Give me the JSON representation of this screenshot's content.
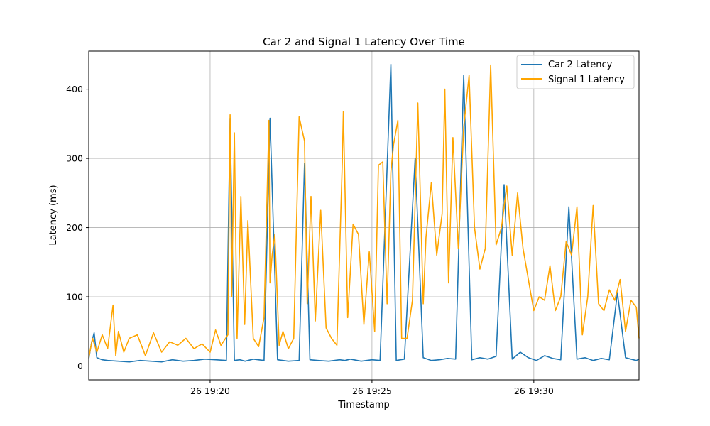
{
  "chart_data": {
    "type": "line",
    "title": "Car 2 and Signal 1 Latency Over Time",
    "xlabel": "Timestamp",
    "ylabel": "Latency (ms)",
    "x_range": [
      "26 19:16:15",
      "26 19:33:15"
    ],
    "ylim": [
      -20,
      455
    ],
    "x_ticks": [
      {
        "time": "26 19:20:00",
        "label": "26 19:20"
      },
      {
        "time": "26 19:25:00",
        "label": "26 19:25"
      },
      {
        "time": "26 19:30:00",
        "label": "26 19:30"
      }
    ],
    "y_ticks": [
      0,
      100,
      200,
      300,
      400
    ],
    "grid": true,
    "legend_position": "top-right",
    "series": [
      {
        "name": "Car 2 Latency",
        "color": "#1f77b4",
        "times": [
          "19:16:15",
          "19:16:20",
          "19:16:25",
          "19:16:30",
          "19:16:40",
          "19:16:50",
          "19:17:10",
          "19:17:30",
          "19:17:50",
          "19:18:10",
          "19:18:30",
          "19:18:50",
          "19:19:10",
          "19:19:30",
          "19:19:50",
          "19:20:10",
          "19:20:30",
          "19:20:37",
          "19:20:45",
          "19:20:55",
          "19:21:05",
          "19:21:20",
          "19:21:40",
          "19:21:51",
          "19:22:05",
          "19:22:25",
          "19:22:45",
          "19:22:55",
          "19:23:05",
          "19:23:20",
          "19:23:40",
          "19:24:00",
          "19:24:10",
          "19:24:20",
          "19:24:40",
          "19:25:00",
          "19:25:15",
          "19:25:35",
          "19:25:45",
          "19:26:00",
          "19:26:20",
          "19:26:35",
          "19:26:50",
          "19:27:05",
          "19:27:20",
          "19:27:35",
          "19:27:50",
          "19:28:05",
          "19:28:20",
          "19:28:35",
          "19:28:50",
          "19:29:05",
          "19:29:20",
          "19:29:35",
          "19:29:50",
          "19:30:05",
          "19:30:20",
          "19:30:35",
          "19:30:50",
          "19:31:05",
          "19:31:20",
          "19:31:35",
          "19:31:50",
          "19:32:05",
          "19:32:20",
          "19:32:35",
          "19:32:50",
          "19:33:00",
          "19:33:10",
          "19:33:15"
        ],
        "values": [
          10,
          33,
          48,
          12,
          9,
          8,
          7,
          6,
          8,
          7,
          6,
          9,
          7,
          8,
          10,
          9,
          8,
          358,
          8,
          9,
          7,
          10,
          8,
          358,
          9,
          7,
          8,
          293,
          9,
          8,
          7,
          9,
          8,
          10,
          7,
          9,
          8,
          436,
          8,
          10,
          300,
          12,
          8,
          9,
          11,
          10,
          420,
          9,
          12,
          10,
          14,
          262,
          10,
          20,
          12,
          8,
          15,
          11,
          9,
          230,
          10,
          12,
          8,
          11,
          9,
          106,
          12,
          10,
          8,
          10
        ]
      },
      {
        "name": "Signal 1 Latency",
        "color": "#ffa500",
        "times": [
          "19:16:15",
          "19:16:22",
          "19:16:30",
          "19:16:40",
          "19:16:50",
          "19:17:00",
          "19:17:05",
          "19:17:10",
          "19:17:20",
          "19:17:30",
          "19:17:45",
          "19:18:00",
          "19:18:15",
          "19:18:30",
          "19:18:45",
          "19:19:00",
          "19:19:15",
          "19:19:30",
          "19:19:45",
          "19:20:00",
          "19:20:10",
          "19:20:20",
          "19:20:33",
          "19:20:37",
          "19:20:40",
          "19:20:45",
          "19:20:50",
          "19:20:57",
          "19:21:04",
          "19:21:10",
          "19:21:20",
          "19:21:30",
          "19:21:40",
          "19:21:49",
          "19:21:51",
          "19:21:55",
          "19:22:00",
          "19:22:08",
          "19:22:15",
          "19:22:25",
          "19:22:35",
          "19:22:45",
          "19:22:55",
          "19:23:00",
          "19:23:07",
          "19:23:15",
          "19:23:25",
          "19:23:35",
          "19:23:45",
          "19:23:55",
          "19:24:05",
          "19:24:07",
          "19:24:15",
          "19:24:25",
          "19:24:35",
          "19:24:45",
          "19:24:55",
          "19:25:05",
          "19:25:12",
          "19:25:20",
          "19:25:28",
          "19:25:35",
          "19:25:40",
          "19:25:48",
          "19:25:55",
          "19:26:05",
          "19:26:15",
          "19:26:25",
          "19:26:35",
          "19:26:40",
          "19:26:50",
          "19:27:00",
          "19:27:10",
          "19:27:15",
          "19:27:22",
          "19:27:30",
          "19:27:40",
          "19:27:50",
          "19:28:00",
          "19:28:10",
          "19:28:20",
          "19:28:30",
          "19:28:40",
          "19:28:50",
          "19:29:00",
          "19:29:10",
          "19:29:20",
          "19:29:30",
          "19:29:40",
          "19:29:50",
          "19:30:00",
          "19:30:10",
          "19:30:20",
          "19:30:30",
          "19:30:40",
          "19:30:50",
          "19:31:00",
          "19:31:10",
          "19:31:20",
          "19:31:30",
          "19:31:40",
          "19:31:50",
          "19:32:00",
          "19:32:10",
          "19:32:20",
          "19:32:30",
          "19:32:40",
          "19:32:50",
          "19:33:00",
          "19:33:10",
          "19:33:15"
        ],
        "values": [
          12,
          40,
          20,
          45,
          25,
          88,
          15,
          50,
          20,
          40,
          45,
          15,
          48,
          20,
          35,
          30,
          40,
          25,
          32,
          20,
          52,
          30,
          45,
          363,
          100,
          337,
          40,
          245,
          60,
          210,
          40,
          28,
          70,
          355,
          120,
          160,
          190,
          30,
          50,
          25,
          40,
          360,
          325,
          90,
          245,
          65,
          225,
          55,
          40,
          30,
          295,
          368,
          70,
          205,
          190,
          60,
          165,
          50,
          290,
          295,
          90,
          280,
          320,
          355,
          40,
          40,
          95,
          380,
          90,
          185,
          265,
          160,
          220,
          400,
          120,
          330,
          170,
          345,
          420,
          200,
          140,
          170,
          435,
          175,
          200,
          260,
          160,
          250,
          170,
          125,
          80,
          100,
          95,
          145,
          80,
          100,
          180,
          160,
          230,
          45,
          100,
          232,
          90,
          80,
          110,
          95,
          125,
          50,
          95,
          85,
          40
        ]
      }
    ]
  }
}
